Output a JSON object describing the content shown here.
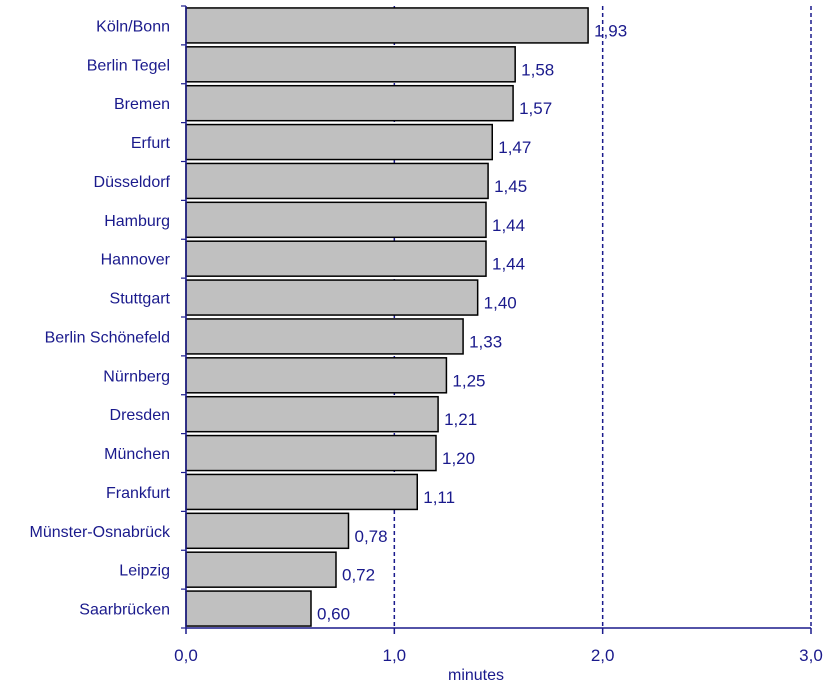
{
  "chart_data": {
    "type": "bar",
    "orientation": "horizontal",
    "categories": [
      "Köln/Bonn",
      "Berlin Tegel",
      "Bremen",
      "Erfurt",
      "Düsseldorf",
      "Hamburg",
      "Hannover",
      "Stuttgart",
      "Berlin Schönefeld",
      "Nürnberg",
      "Dresden",
      "München",
      "Frankfurt",
      "Münster-Osnabrück",
      "Leipzig",
      "Saarbrücken"
    ],
    "values": [
      1.93,
      1.58,
      1.57,
      1.47,
      1.45,
      1.44,
      1.44,
      1.4,
      1.33,
      1.25,
      1.21,
      1.2,
      1.11,
      0.78,
      0.72,
      0.6
    ],
    "value_labels": [
      "1,93",
      "1,58",
      "1,57",
      "1,47",
      "1,45",
      "1,44",
      "1,44",
      "1,40",
      "1,33",
      "1,25",
      "1,21",
      "1,20",
      "1,11",
      "0,78",
      "0,72",
      "0,60"
    ],
    "xlim": [
      0,
      3
    ],
    "xticks": [
      0,
      1,
      2,
      3
    ],
    "xtick_labels": [
      "0,0",
      "1,0",
      "2,0",
      "3,0"
    ],
    "xlabel": "minutes",
    "title": "",
    "grid": "dashed vertical lines at 1,0, 2,0 and 3,0",
    "colors": {
      "bar_fill": "#c0c0c0",
      "bar_stroke": "#000000",
      "text": "#1a1a8c",
      "axis": "#1a1a8c"
    }
  }
}
